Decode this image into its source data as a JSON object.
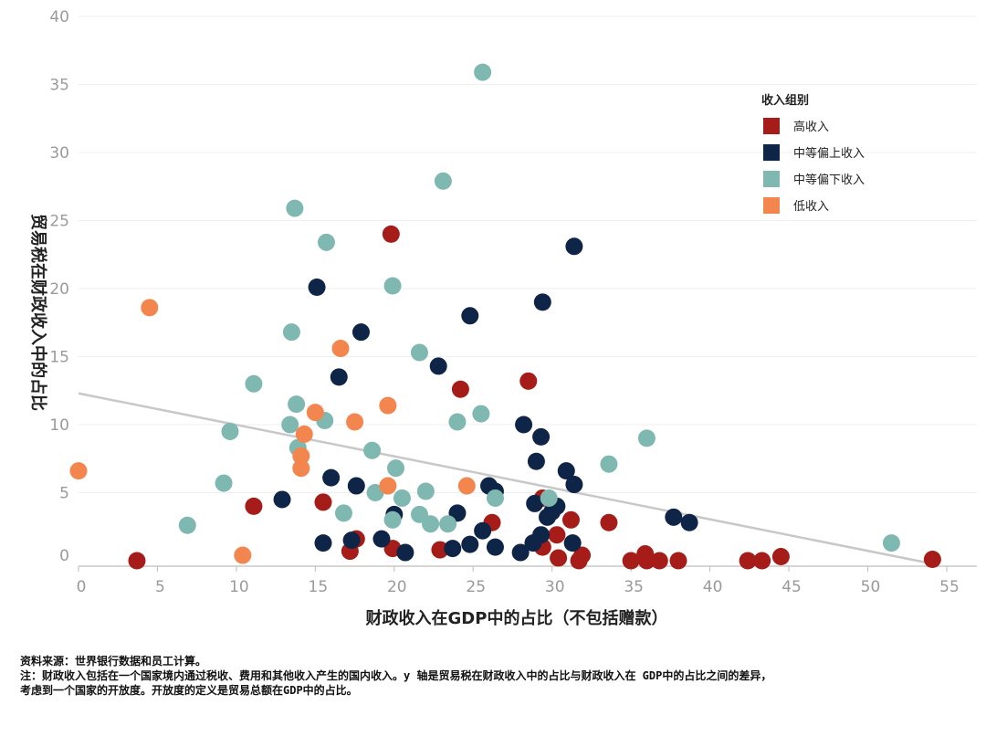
{
  "chart_data": {
    "type": "scatter",
    "title": "",
    "xlabel": "财政收入在GDP中的占比（不包括赠款）",
    "ylabel": "贸易税在财政收入中的占比",
    "xlim": [
      0,
      57
    ],
    "ylim": [
      -0.5,
      40
    ],
    "x_ticks": [
      "0",
      "5",
      "10",
      "15",
      "20",
      "25",
      "30",
      "35",
      "40",
      "45",
      "50",
      "55"
    ],
    "y_ticks": [
      "0",
      "5",
      "10",
      "15",
      "20",
      "25",
      "30",
      "35",
      "40"
    ],
    "grid": "horizontal",
    "legend": {
      "title": "收入组别",
      "position": "top-right",
      "entries": [
        {
          "name": "高收入",
          "color": "#a51c18"
        },
        {
          "name": "中等偏上收入",
          "color": "#0f2548"
        },
        {
          "name": "中等偏下收入",
          "color": "#7fb8b1"
        },
        {
          "name": "低收入",
          "color": "#f3864f"
        }
      ]
    },
    "trendline": {
      "x": [
        0,
        54
      ],
      "y": [
        12.3,
        -0.2
      ],
      "color": "#c8c8c8"
    },
    "series": [
      {
        "name": "高收入",
        "color": "#a51c18",
        "points": [
          [
            3.7,
            0
          ],
          [
            11.1,
            4.0
          ],
          [
            15.5,
            4.3
          ],
          [
            17.2,
            0.7
          ],
          [
            17.6,
            1.6
          ],
          [
            19.8,
            24.0
          ],
          [
            19.9,
            0.9
          ],
          [
            22.9,
            0.8
          ],
          [
            24.2,
            12.6
          ],
          [
            26.2,
            2.8
          ],
          [
            28.5,
            13.2
          ],
          [
            29.4,
            4.6
          ],
          [
            29.4,
            1.0
          ],
          [
            30.3,
            1.9
          ],
          [
            30.4,
            0.2
          ],
          [
            31.2,
            3.0
          ],
          [
            31.7,
            0
          ],
          [
            31.9,
            0.4
          ],
          [
            33.6,
            2.8
          ],
          [
            35.0,
            0
          ],
          [
            35.9,
            0.5
          ],
          [
            36.0,
            0
          ],
          [
            36.8,
            0
          ],
          [
            38.0,
            0
          ],
          [
            42.4,
            0
          ],
          [
            43.3,
            0
          ],
          [
            44.5,
            0.3
          ],
          [
            54.1,
            0.1
          ]
        ]
      },
      {
        "name": "中等偏上收入",
        "color": "#0f2548",
        "points": [
          [
            12.9,
            4.5
          ],
          [
            15.1,
            20.1
          ],
          [
            15.5,
            1.3
          ],
          [
            16.0,
            6.1
          ],
          [
            16.5,
            13.5
          ],
          [
            17.3,
            1.5
          ],
          [
            17.6,
            5.5
          ],
          [
            17.9,
            16.8
          ],
          [
            19.2,
            1.6
          ],
          [
            20.0,
            3.4
          ],
          [
            20.7,
            0.6
          ],
          [
            22.8,
            14.3
          ],
          [
            23.7,
            0.9
          ],
          [
            24.0,
            3.5
          ],
          [
            24.8,
            1.2
          ],
          [
            24.8,
            18.0
          ],
          [
            25.6,
            2.2
          ],
          [
            26.0,
            5.5
          ],
          [
            26.4,
            5.1
          ],
          [
            26.4,
            1.0
          ],
          [
            28.0,
            0.6
          ],
          [
            28.2,
            10.0
          ],
          [
            28.8,
            1.3
          ],
          [
            28.9,
            4.2
          ],
          [
            29.0,
            7.3
          ],
          [
            29.3,
            9.1
          ],
          [
            29.3,
            1.9
          ],
          [
            29.4,
            19.0
          ],
          [
            29.7,
            3.2
          ],
          [
            30.0,
            3.6
          ],
          [
            30.3,
            4.0
          ],
          [
            30.9,
            6.6
          ],
          [
            31.3,
            1.3
          ],
          [
            31.4,
            23.1
          ],
          [
            31.4,
            5.6
          ],
          [
            37.7,
            3.2
          ],
          [
            38.7,
            2.8
          ]
        ]
      },
      {
        "name": "中等偏下收入",
        "color": "#7fb8b1",
        "points": [
          [
            6.9,
            2.6
          ],
          [
            9.2,
            5.7
          ],
          [
            9.6,
            9.5
          ],
          [
            11.1,
            13.0
          ],
          [
            13.4,
            10.0
          ],
          [
            13.5,
            16.8
          ],
          [
            13.7,
            25.9
          ],
          [
            13.8,
            11.5
          ],
          [
            13.9,
            8.3
          ],
          [
            15.6,
            10.3
          ],
          [
            15.7,
            23.4
          ],
          [
            16.8,
            3.5
          ],
          [
            18.6,
            8.1
          ],
          [
            18.8,
            5.0
          ],
          [
            19.9,
            3.0
          ],
          [
            19.9,
            20.2
          ],
          [
            20.1,
            6.8
          ],
          [
            20.5,
            4.6
          ],
          [
            21.6,
            15.3
          ],
          [
            21.6,
            3.4
          ],
          [
            22.0,
            5.1
          ],
          [
            22.3,
            2.7
          ],
          [
            23.1,
            27.9
          ],
          [
            23.4,
            2.7
          ],
          [
            24.0,
            10.2
          ],
          [
            25.5,
            10.8
          ],
          [
            25.6,
            35.9
          ],
          [
            26.4,
            4.6
          ],
          [
            29.8,
            4.6
          ],
          [
            33.6,
            7.1
          ],
          [
            36.0,
            9.0
          ],
          [
            51.5,
            1.3
          ]
        ]
      },
      {
        "name": "低收入",
        "color": "#f3864f",
        "points": [
          [
            0,
            6.6
          ],
          [
            4.5,
            18.6
          ],
          [
            10.4,
            0.4
          ],
          [
            14.1,
            7.7
          ],
          [
            14.1,
            6.8
          ],
          [
            14.3,
            9.3
          ],
          [
            15.0,
            10.9
          ],
          [
            16.6,
            15.6
          ],
          [
            17.5,
            10.2
          ],
          [
            19.6,
            11.4
          ],
          [
            19.6,
            5.5
          ],
          [
            24.6,
            5.5
          ]
        ]
      }
    ]
  },
  "notes": {
    "line1": "资料来源：世界银行数据和员工计算。",
    "line2": "注：财政收入包括在一个国家境内通过税收、费用和其他收入产生的国内收入。y 轴是贸易税在财政收入中的占比与财政收入在 GDP中的占比之间的差异，",
    "line3": "考虑到一个国家的开放度。开放度的定义是贸易总额在GDP中的占比。"
  }
}
